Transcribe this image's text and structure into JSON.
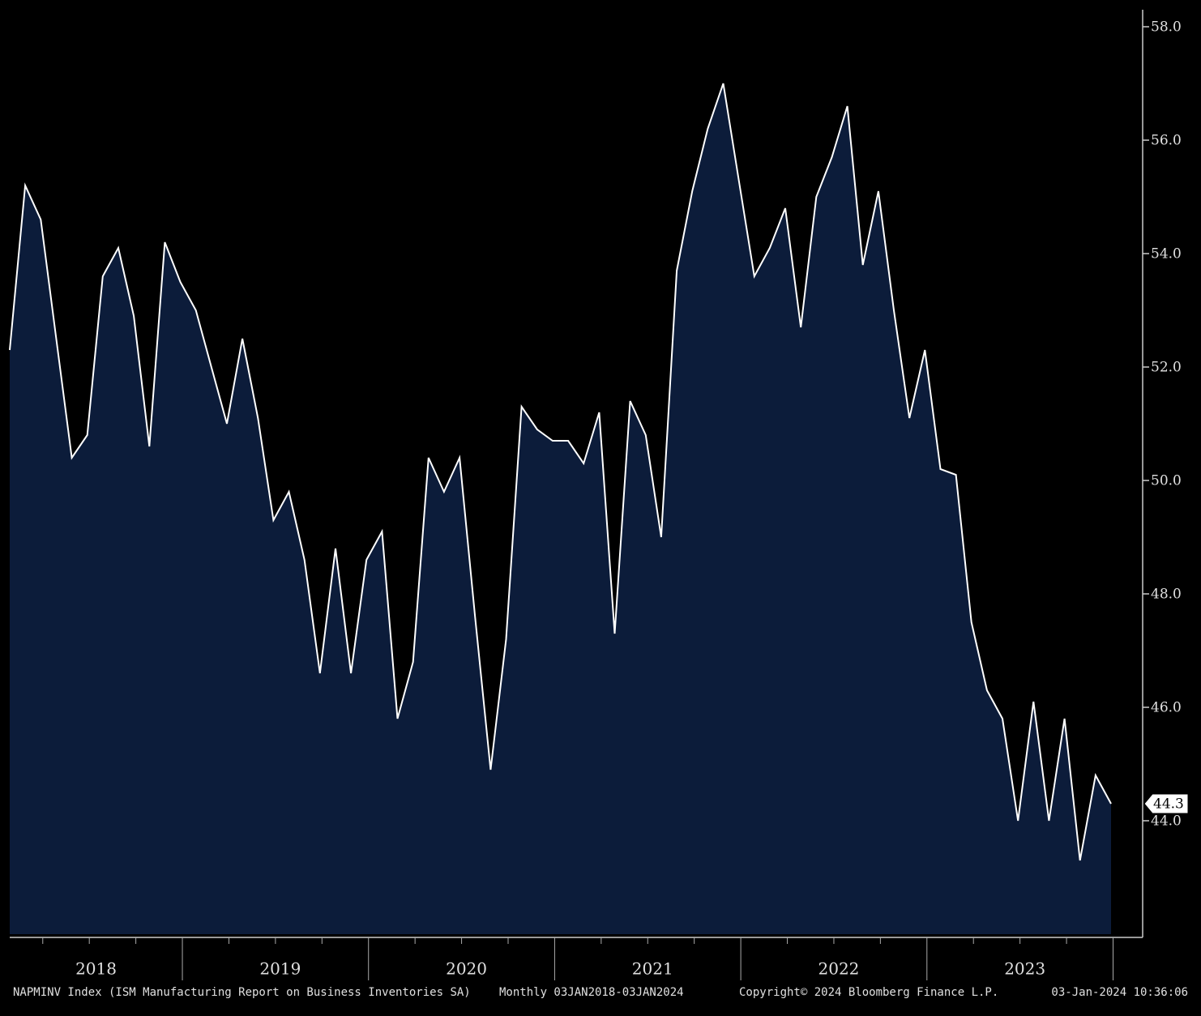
{
  "chart_data": {
    "type": "area",
    "series_label": "NAPMINV Index (ISM Manufacturing Report on Business Inventories SA)",
    "frequency": "Monthly 03JAN2018-03JAN2024",
    "copyright": "Copyright© 2024 Bloomberg Finance L.P.",
    "timestamp": "03-Jan-2024 10:36:06",
    "year_labels": [
      "2018",
      "2019",
      "2020",
      "2021",
      "2022",
      "2023"
    ],
    "values": [
      52.3,
      55.2,
      54.6,
      52.5,
      50.4,
      50.8,
      53.6,
      54.1,
      52.9,
      50.6,
      54.2,
      53.5,
      53.0,
      52.0,
      51.0,
      52.5,
      51.1,
      49.3,
      49.8,
      48.6,
      46.6,
      48.8,
      46.6,
      48.6,
      49.1,
      45.8,
      46.8,
      50.4,
      49.8,
      50.4,
      47.6,
      44.9,
      47.2,
      51.3,
      50.9,
      50.7,
      50.7,
      50.3,
      51.2,
      47.3,
      51.4,
      50.8,
      49.0,
      53.7,
      55.1,
      56.2,
      57.0,
      55.3,
      53.6,
      54.1,
      54.8,
      52.7,
      55.0,
      55.7,
      56.6,
      53.8,
      55.1,
      53.0,
      51.1,
      52.3,
      50.2,
      50.1,
      47.5,
      46.3,
      45.8,
      44.0,
      46.1,
      44.0,
      45.8,
      43.3,
      44.8,
      44.3
    ],
    "color": "#0c1c3a",
    "line_color": "#ffffff",
    "ylim": [
      42,
      58.3
    ],
    "yticks": [
      {
        "value": 44,
        "label": "44.0"
      },
      {
        "value": 46,
        "label": "46.0"
      },
      {
        "value": 48,
        "label": "48.0"
      },
      {
        "value": 50,
        "label": "50.0"
      },
      {
        "value": 52,
        "label": "52.0"
      },
      {
        "value": 54,
        "label": "54.0"
      },
      {
        "value": 56,
        "label": "56.0"
      },
      {
        "value": 58,
        "label": "58.0"
      }
    ]
  }
}
